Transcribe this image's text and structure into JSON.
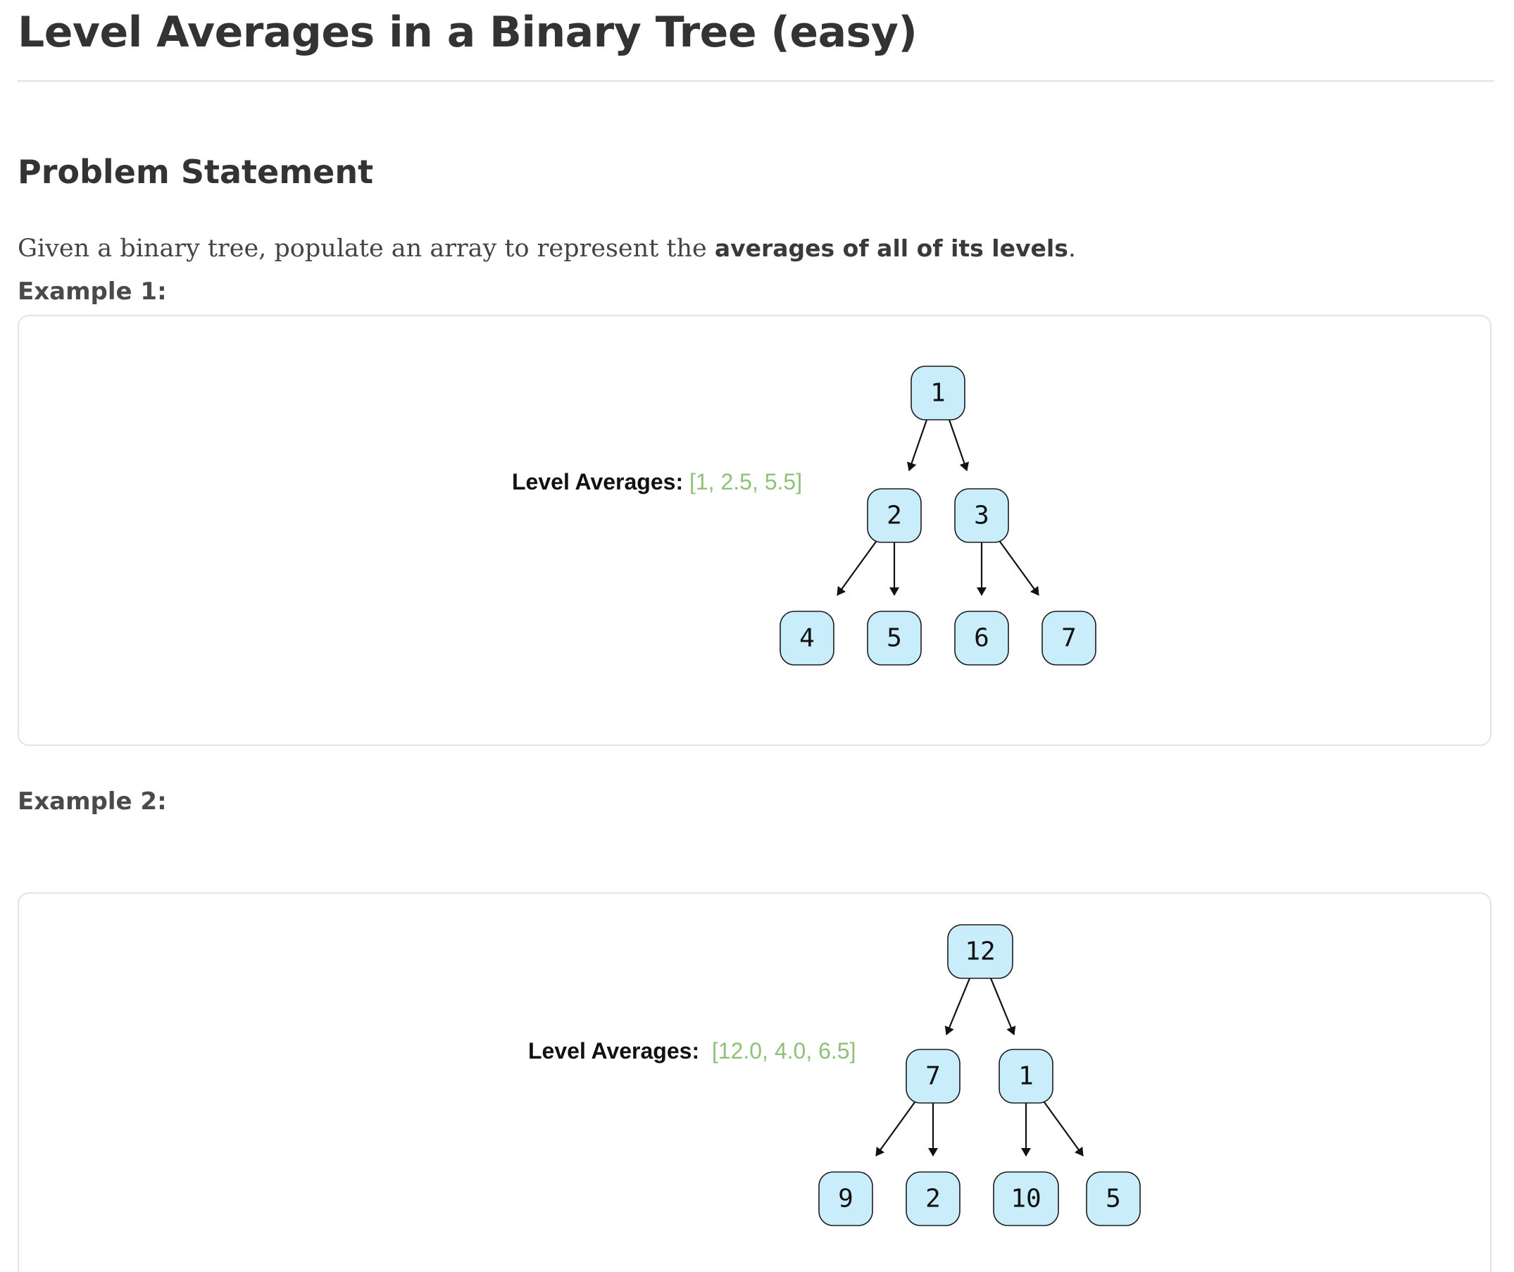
{
  "page": {
    "title": "Level Averages in a Binary Tree (easy)",
    "section_heading": "Problem Statement",
    "statement": {
      "prefix": "Given a binary tree, populate an array to represent the ",
      "bold": "averages of all of its levels",
      "suffix": "."
    }
  },
  "examples": [
    {
      "label": "Example 1:",
      "averages_label": "Level Averages:",
      "averages_value": "[1, 2.5, 5.5]",
      "tree": {
        "root": "1",
        "level2": [
          "2",
          "3"
        ],
        "level3": [
          "4",
          "5",
          "6",
          "7"
        ]
      }
    },
    {
      "label": "Example 2:",
      "averages_label": "Level Averages:",
      "averages_value": "[12.0, 4.0, 6.5]",
      "tree": {
        "root": "12",
        "level2": [
          "7",
          "1"
        ],
        "level3": [
          "9",
          "2",
          "10",
          "5"
        ]
      }
    }
  ],
  "colors": {
    "node_fill": "#c9edfb",
    "node_stroke": "#1c1c1c",
    "averages_value": "#8fc17a"
  }
}
